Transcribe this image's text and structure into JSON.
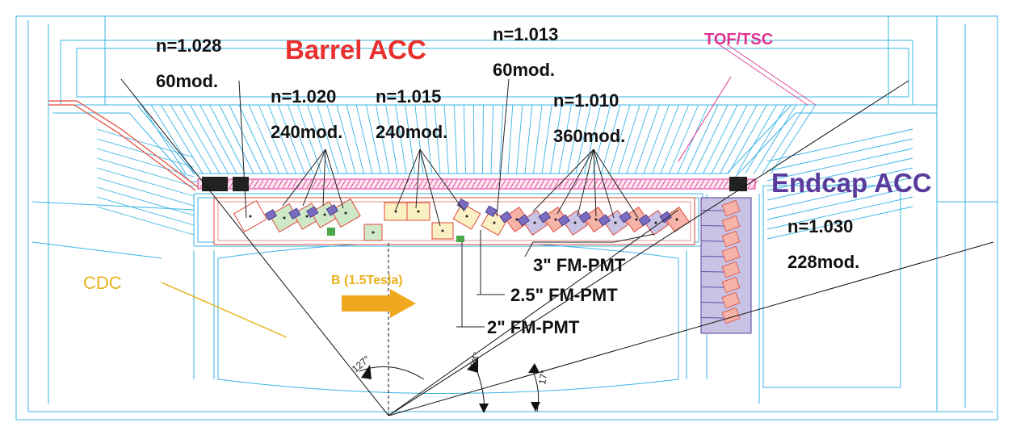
{
  "titles": {
    "barrel": "Barrel ACC",
    "endcap": "Endcap ACC",
    "tof": "TOF/TSC",
    "cdc": "CDC",
    "field": "B (1.5Tesla)"
  },
  "barrel_groups": [
    {
      "index": "n=1.028",
      "modules": "60mod."
    },
    {
      "index": "n=1.020",
      "modules": "240mod."
    },
    {
      "index": "n=1.015",
      "modules": "240mod."
    },
    {
      "index": "n=1.013",
      "modules": "60mod."
    },
    {
      "index": "n=1.010",
      "modules": "360mod."
    }
  ],
  "endcap_group": {
    "index": "n=1.030",
    "modules": "228mod."
  },
  "pmt_labels": [
    "3\" FM-PMT",
    "2.5\" FM-PMT",
    "2\" FM-PMT"
  ],
  "angles": [
    "127°",
    "34°",
    "17°"
  ],
  "colors": {
    "outline": "#3ab4e6",
    "barrel_title": "#e8302e",
    "endcap_title": "#5a3a9a",
    "tof": "#e0338f",
    "cdc": "#e8b21c",
    "field_arrow": "#f0a91e",
    "aerogel_green": "#cfe8c8",
    "aerogel_yellow": "#fbefc4",
    "aerogel_red": "#f6b4a8",
    "aerogel_purple": "#c8c2e4",
    "support_red": "#e04a3a"
  }
}
